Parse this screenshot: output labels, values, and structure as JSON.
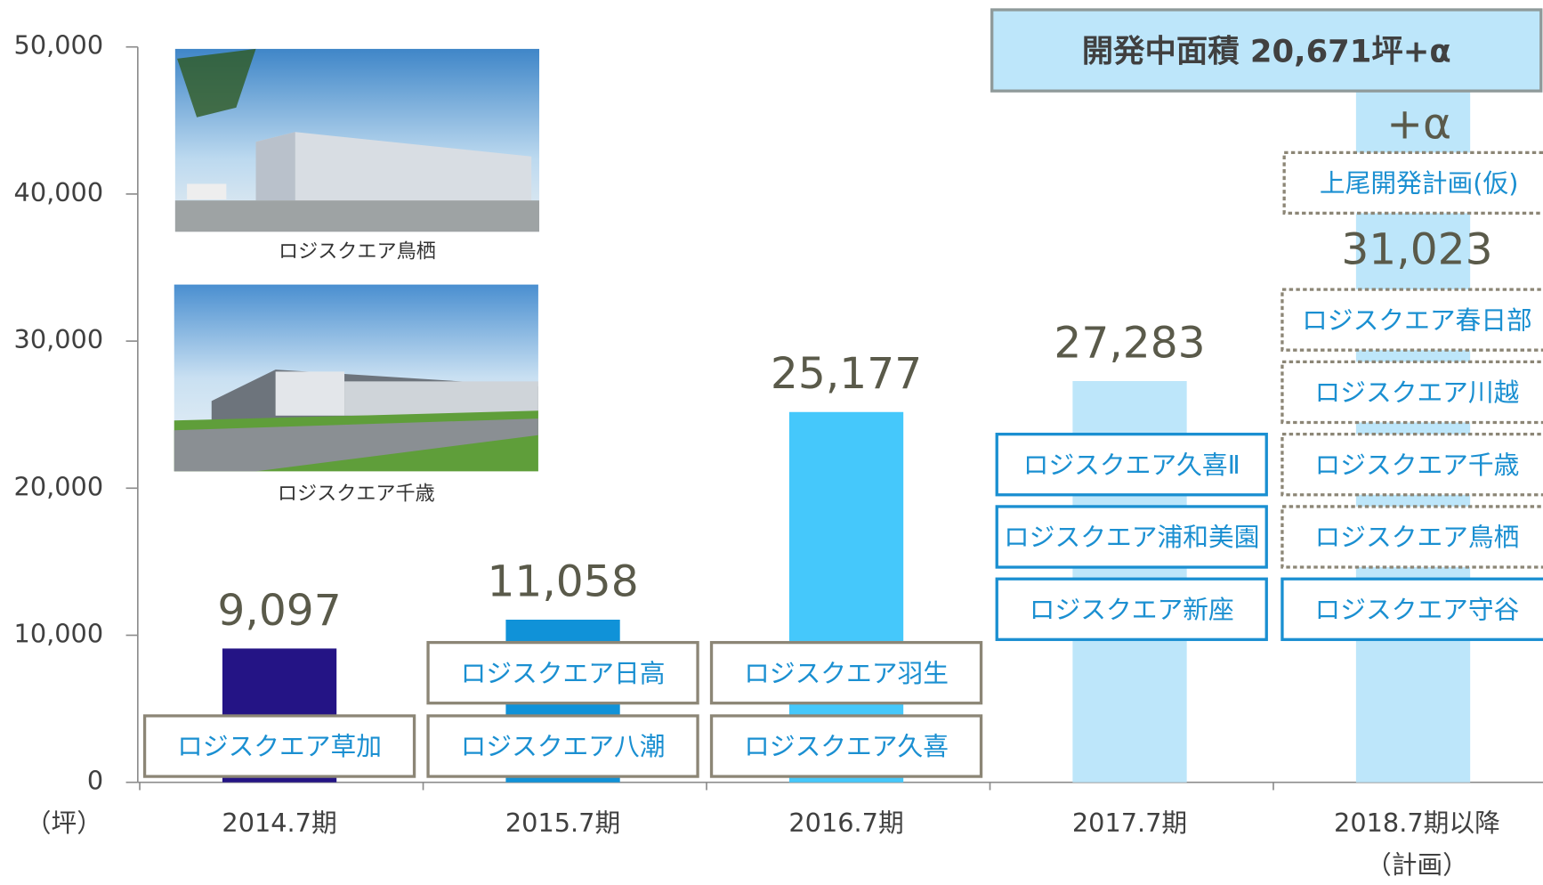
{
  "chart_data": {
    "type": "bar",
    "unit_label": "（坪）",
    "categories": [
      "2014.7期",
      "2015.7期",
      "2016.7期",
      "2017.7期",
      "2018.7期以降"
    ],
    "x_sublabel": "（計画）",
    "values": [
      9097,
      11058,
      25177,
      27283,
      31023
    ],
    "value_labels": [
      "9,097",
      "11,058",
      "25,177",
      "27,283",
      "31,023"
    ],
    "colors": [
      "#241485",
      "#1092d8",
      "#45c8fb",
      "#bde6fa",
      "#bde6fa"
    ],
    "ylim": [
      0,
      50000
    ],
    "yticks": [
      0,
      {
        "value": 10000,
        "label": "10,000"
      },
      {
        "value": 20000,
        "label": "20,000"
      },
      {
        "value": 30000,
        "label": "30,000"
      },
      {
        "value": 40000,
        "label": "40,000"
      },
      {
        "value": 50000,
        "label": "50,000"
      }
    ],
    "headline": "開発中面積  20,671坪+α",
    "plus_label": "+α",
    "properties": [
      [
        {
          "name": "ロジスクエア草加",
          "border": "#8c8676",
          "dashed": false
        }
      ],
      [
        {
          "name": "ロジスクエア八潮",
          "border": "#8c8676",
          "dashed": false
        },
        {
          "name": "ロジスクエア日高",
          "border": "#8c8676",
          "dashed": false
        }
      ],
      [
        {
          "name": "ロジスクエア久喜",
          "border": "#8c8676",
          "dashed": false
        },
        {
          "name": "ロジスクエア羽生",
          "border": "#8c8676",
          "dashed": false
        }
      ],
      [
        {
          "name": "ロジスクエア新座",
          "border": "#1a8fd1",
          "dashed": false
        },
        {
          "name": "ロジスクエア浦和美園",
          "border": "#1a8fd1",
          "dashed": false
        },
        {
          "name": "ロジスクエア久喜Ⅱ",
          "border": "#1a8fd1",
          "dashed": false
        }
      ],
      [
        {
          "name": "ロジスクエア守谷",
          "border": "#1a8fd1",
          "dashed": false
        },
        {
          "name": "ロジスクエア鳥栖",
          "border": "#8c8676",
          "dashed": true
        },
        {
          "name": "ロジスクエア千歳",
          "border": "#8c8676",
          "dashed": true
        },
        {
          "name": "ロジスクエア川越",
          "border": "#8c8676",
          "dashed": true
        },
        {
          "name": "ロジスクエア春日部",
          "border": "#8c8676",
          "dashed": true
        }
      ]
    ],
    "planned_property": {
      "name": "上尾開発計画(仮)",
      "border": "#8c8676",
      "dashed": true
    }
  },
  "photos": [
    {
      "caption": "ロジスクエア鳥栖"
    },
    {
      "caption": "ロジスクエア千歳"
    }
  ]
}
